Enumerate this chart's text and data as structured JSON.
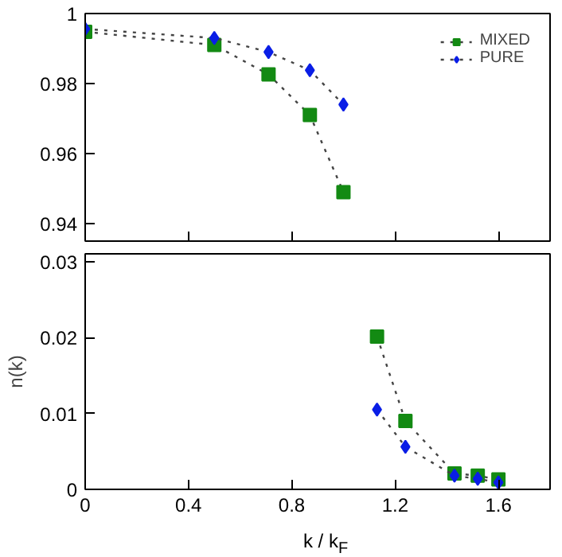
{
  "chart_data": [
    {
      "type": "line",
      "xlim": [
        0,
        1.8
      ],
      "xticks": [
        0,
        0.4,
        0.8,
        1.2,
        1.6
      ],
      "ylim": [
        0.935,
        1
      ],
      "yticks": [
        0.94,
        0.96,
        0.98,
        1
      ],
      "tick_labels": "y",
      "legend": "top right",
      "line_style": "dotted",
      "grid": false,
      "series": [
        {
          "name": "MIXED",
          "color": "#138a13",
          "marker": "square",
          "x": [
            0,
            0.5,
            0.71,
            0.87,
            1.0
          ],
          "values": [
            0.9948,
            0.991,
            0.9826,
            0.971,
            0.949
          ]
        },
        {
          "name": "PURE",
          "color": "#0a1ee6",
          "marker": "diamond",
          "x": [
            0,
            0.5,
            0.71,
            0.87,
            1.0
          ],
          "values": [
            0.9956,
            0.993,
            0.989,
            0.9838,
            0.974
          ]
        }
      ]
    },
    {
      "type": "line",
      "xlim": [
        0,
        1.8
      ],
      "xticks": [
        0,
        0.4,
        0.8,
        1.2,
        1.6
      ],
      "ylim": [
        0,
        0.031
      ],
      "yticks": [
        0,
        0.01,
        0.02,
        0.03
      ],
      "xlabel": "k / k$_{F}$",
      "ylabel": "n(k)",
      "line_style": "dotted",
      "grid": false,
      "series": [
        {
          "color": "#138a13",
          "marker": "square",
          "x": [
            1.13,
            1.24,
            1.43,
            1.52,
            1.6
          ],
          "values": [
            0.0201,
            0.009,
            0.0021,
            0.0018,
            0.0013
          ]
        },
        {
          "color": "#0a1ee6",
          "marker": "diamond",
          "x": [
            1.13,
            1.24,
            1.43,
            1.52,
            1.6
          ],
          "values": [
            0.0105,
            0.0056,
            0.0018,
            0.0014,
            0.0009
          ]
        }
      ]
    }
  ]
}
